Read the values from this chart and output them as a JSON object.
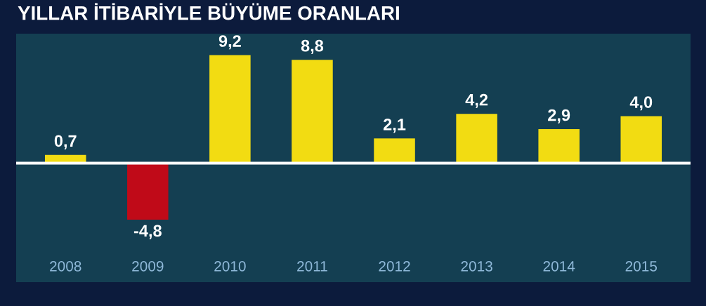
{
  "chart_data": {
    "type": "bar",
    "title": "YILLAR İTİBARİYLE BÜYÜME ORANLARI",
    "categories": [
      "2008",
      "2009",
      "2010",
      "2011",
      "2012",
      "2013",
      "2014",
      "2015"
    ],
    "values": [
      0.7,
      -4.8,
      9.2,
      8.8,
      2.1,
      4.2,
      2.9,
      4.0
    ],
    "colors": [
      "#f2dc12",
      "#c00a18",
      "#f2dc12",
      "#f2dc12",
      "#f2dc12",
      "#f2dc12",
      "#f2dc12",
      "#f2dc12"
    ],
    "value_labels": [
      "0,7",
      "-4,8",
      "9,2",
      "8,8",
      "2,1",
      "4,2",
      "2,9",
      "4,0"
    ],
    "grid": false,
    "legend": false
  }
}
